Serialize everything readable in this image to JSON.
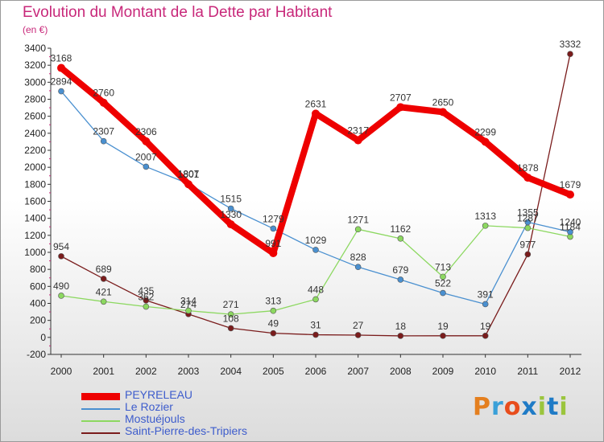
{
  "title": "Evolution du Montant de la Dette par Habitant",
  "unit": "(en €)",
  "logo": "Proxiti",
  "chart_data": {
    "type": "line",
    "categories": [
      "2000",
      "2001",
      "2002",
      "2003",
      "2004",
      "2005",
      "2006",
      "2007",
      "2008",
      "2009",
      "2010",
      "2011",
      "2012"
    ],
    "ylim": [
      -200,
      3400
    ],
    "yticks": [
      -200,
      0,
      200,
      400,
      600,
      800,
      1000,
      1200,
      1400,
      1600,
      1800,
      2000,
      2200,
      2400,
      2600,
      2800,
      3000,
      3200,
      3400
    ],
    "grid": false,
    "legend": "bottom-left",
    "series": [
      {
        "name": "PEYRELEAU",
        "color": "#ee0000",
        "values": [
          3168,
          2760,
          2306,
          1801,
          1330,
          991,
          2631,
          2317,
          2707,
          2650,
          2299,
          1878,
          1679
        ]
      },
      {
        "name": "Le Rozier",
        "color": "#4a90d0",
        "values": [
          2894,
          2307,
          2007,
          1807,
          1515,
          1279,
          1029,
          828,
          679,
          522,
          391,
          1355,
          1240
        ]
      },
      {
        "name": "Mostuéjouls",
        "color": "#8cd860",
        "values": [
          490,
          421,
          362,
          314,
          271,
          313,
          448,
          1271,
          1162,
          713,
          1313,
          1287,
          1184
        ]
      },
      {
        "name": "Saint-Pierre-des-Tripiers",
        "color": "#7a1c1c",
        "values": [
          954,
          689,
          435,
          274,
          108,
          49,
          31,
          27,
          18,
          19,
          19,
          977,
          3332
        ]
      }
    ]
  }
}
